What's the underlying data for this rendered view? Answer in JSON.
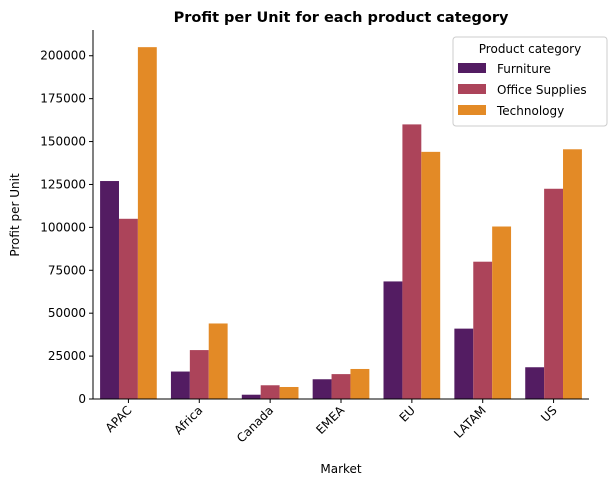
{
  "chart_data": {
    "type": "bar",
    "title": "Profit per Unit for each product category",
    "xlabel": "Market",
    "ylabel": "Profit per Unit",
    "categories": [
      "APAC",
      "Africa",
      "Canada",
      "EMEA",
      "EU",
      "LATAM",
      "US"
    ],
    "series": [
      {
        "name": "Furniture",
        "color": "#531c62",
        "values": [
          127000,
          16000,
          2500,
          11500,
          68500,
          41000,
          18500
        ]
      },
      {
        "name": "Office Supplies",
        "color": "#ac445a",
        "values": [
          105000,
          28500,
          8000,
          14500,
          160000,
          80000,
          122500
        ]
      },
      {
        "name": "Technology",
        "color": "#e38a26",
        "values": [
          205000,
          44000,
          7000,
          17500,
          144000,
          100500,
          145500
        ]
      }
    ],
    "ylim": [
      0,
      215000
    ],
    "yticks": [
      0,
      25000,
      50000,
      75000,
      100000,
      125000,
      150000,
      175000,
      200000
    ],
    "legend": {
      "title": "Product category",
      "placement": "top-right"
    },
    "grid": false
  }
}
